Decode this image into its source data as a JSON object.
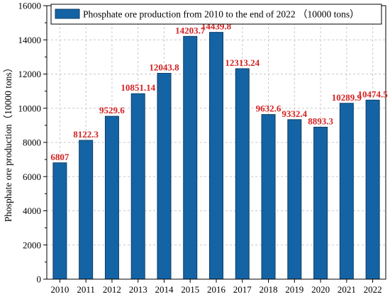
{
  "chart_data": {
    "type": "bar",
    "categories": [
      "2010",
      "2011",
      "2012",
      "2013",
      "2014",
      "2015",
      "2016",
      "2017",
      "2018",
      "2019",
      "2020",
      "2021",
      "2022"
    ],
    "series": [
      {
        "name": "Phosphate ore production from 2010 to the end of 2022 （10000 tons）",
        "values": [
          6807,
          8122.3,
          9529.6,
          10851.14,
          12043.8,
          14203.7,
          14439.8,
          12313.24,
          9632.6,
          9332.4,
          8893.3,
          10289.9,
          10474.5
        ]
      }
    ],
    "data_labels": [
      "6807",
      "8122.3",
      "9529.6",
      "10851.14",
      "12043.8",
      "14203.7",
      "14439.8",
      "12313.24",
      "9632.6",
      "9332.4",
      "8893.3",
      "10289.9",
      "10474.5"
    ],
    "ylabel": "Phosphate ore production（10000 tons）",
    "xlabel": "",
    "ylim": [
      0,
      16000
    ],
    "yticks": [
      0,
      2000,
      4000,
      6000,
      8000,
      10000,
      12000,
      14000,
      16000
    ],
    "grid": true,
    "legend_position": "top-left",
    "colors": {
      "bar": "#1464a5",
      "bar_edge": "#0b3d66",
      "data_label": "#d42222",
      "grid": "#c8c8c8"
    }
  }
}
